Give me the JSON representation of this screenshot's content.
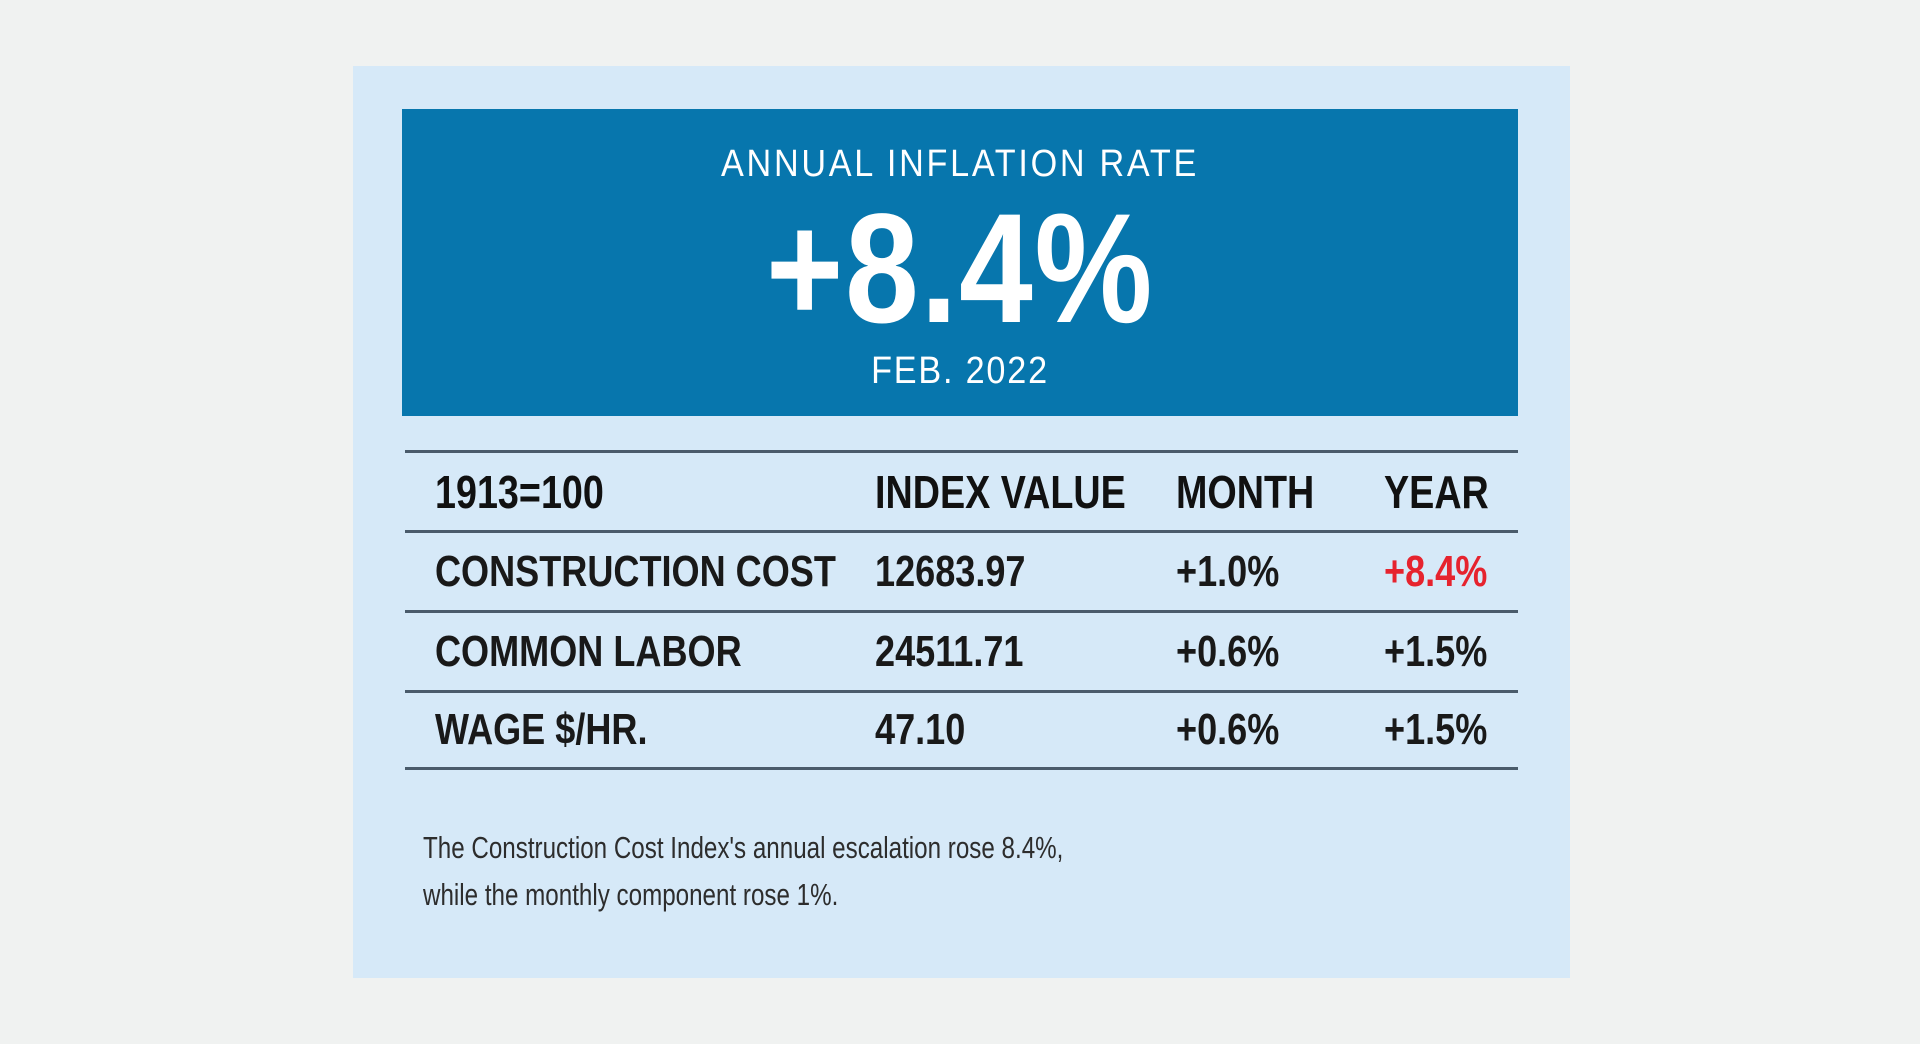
{
  "page": {
    "background": "#f0f2f1"
  },
  "card": {
    "background": "#d6e9f8"
  },
  "banner": {
    "background": "#0776ad",
    "text_color": "#ffffff",
    "title": "ANNUAL INFLATION RATE",
    "value": "+8.4%",
    "period": "FEB. 2022"
  },
  "table": {
    "rule_color": "#4a5b6b",
    "text_color": "#191919",
    "accent_red": "#e6232e",
    "header": {
      "base": "1913=100",
      "index_value": "INDEX VALUE",
      "month": "MONTH",
      "year": "YEAR"
    },
    "rows": [
      {
        "label": "CONSTRUCTION COST",
        "index_value": "12683.97",
        "month": "+1.0%",
        "year": "+8.4%"
      },
      {
        "label": "COMMON LABOR",
        "index_value": "24511.71",
        "month": "+0.6%",
        "year": "+1.5%"
      },
      {
        "label": "WAGE $/HR.",
        "index_value": "47.10",
        "month": "+0.6%",
        "year": "+1.5%"
      }
    ]
  },
  "footnote": {
    "line1": "The Construction Cost Index's annual escalation rose 8.4%,",
    "line2": "while the monthly component rose 1%."
  },
  "chart_data": {
    "type": "table",
    "title": "ANNUAL INFLATION RATE",
    "headline_value": "+8.4%",
    "period": "FEB. 2022",
    "index_base": "1913=100",
    "columns": [
      "1913=100",
      "INDEX VALUE",
      "MONTH",
      "YEAR"
    ],
    "rows": [
      [
        "CONSTRUCTION COST",
        12683.97,
        "+1.0%",
        "+8.4%"
      ],
      [
        "COMMON LABOR",
        24511.71,
        "+0.6%",
        "+1.5%"
      ],
      [
        "WAGE $/HR.",
        47.1,
        "+0.6%",
        "+1.5%"
      ]
    ],
    "highlight": {
      "row": "CONSTRUCTION COST",
      "column": "YEAR",
      "value": "+8.4%",
      "color": "#e6232e"
    },
    "annotations": [
      "The Construction Cost Index's annual escalation rose 8.4%, while the monthly component rose 1%."
    ]
  }
}
